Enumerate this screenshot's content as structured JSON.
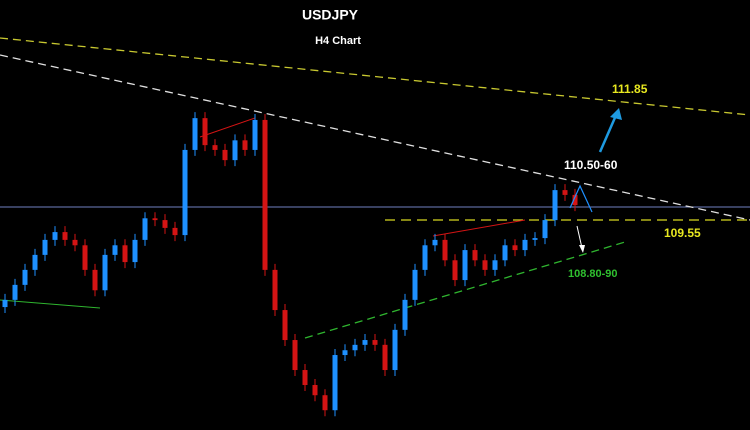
{
  "chart_data": {
    "type": "candlestick",
    "title": "USDJPY",
    "subtitle": "H4 Chart",
    "annotations": [
      "111.85",
      "110.50-60",
      "109.55",
      "108.80-90"
    ],
    "up_color": "#1e90ff",
    "down_color": "#d41414",
    "ylim": [
      106.05,
      113.22
    ],
    "open": [
      108.1,
      108.22,
      108.47,
      108.72,
      108.97,
      109.22,
      109.35,
      109.22,
      109.13,
      108.72,
      108.38,
      108.97,
      109.13,
      108.85,
      109.22,
      109.58,
      109.55,
      109.42,
      109.3,
      110.72,
      111.25,
      110.8,
      110.72,
      110.55,
      110.88,
      110.72,
      111.22,
      108.72,
      108.05,
      107.55,
      107.05,
      106.8,
      106.63,
      106.38,
      107.3,
      107.38,
      107.47,
      107.55,
      107.47,
      107.05,
      107.72,
      108.22,
      108.72,
      109.13,
      109.22,
      108.88,
      108.55,
      109.05,
      108.88,
      108.72,
      108.88,
      109.13,
      109.05,
      109.22,
      109.25,
      109.55,
      110.05,
      109.97
    ],
    "high": [
      108.32,
      108.57,
      108.82,
      109.07,
      109.32,
      109.45,
      109.45,
      109.32,
      109.23,
      108.82,
      109.07,
      109.23,
      109.23,
      109.32,
      109.68,
      109.68,
      109.65,
      109.52,
      110.82,
      111.35,
      111.35,
      110.9,
      110.82,
      110.98,
      110.98,
      111.32,
      111.32,
      108.82,
      108.15,
      107.65,
      107.15,
      106.9,
      106.73,
      107.4,
      107.48,
      107.57,
      107.65,
      107.65,
      107.57,
      107.82,
      108.32,
      108.82,
      109.23,
      109.32,
      109.32,
      108.98,
      109.15,
      109.15,
      108.98,
      108.98,
      109.23,
      109.23,
      109.32,
      109.35,
      109.65,
      110.15,
      110.15,
      110.07
    ],
    "low": [
      108.0,
      108.12,
      108.37,
      108.62,
      108.87,
      109.12,
      109.12,
      109.03,
      108.62,
      108.28,
      108.28,
      108.87,
      108.75,
      108.75,
      109.12,
      109.45,
      109.32,
      109.2,
      109.2,
      110.62,
      110.7,
      110.62,
      110.45,
      110.45,
      110.62,
      110.62,
      108.62,
      107.95,
      107.45,
      106.95,
      106.7,
      106.53,
      106.28,
      106.28,
      107.2,
      107.28,
      107.37,
      107.37,
      106.95,
      106.95,
      107.62,
      108.12,
      108.62,
      109.03,
      108.78,
      108.45,
      108.45,
      108.78,
      108.62,
      108.62,
      108.78,
      108.95,
      108.95,
      109.12,
      109.15,
      109.45,
      109.87,
      109.7
    ],
    "close": [
      108.22,
      108.47,
      108.72,
      108.97,
      109.22,
      109.35,
      109.22,
      109.13,
      108.72,
      108.38,
      108.97,
      109.13,
      108.85,
      109.22,
      109.58,
      109.55,
      109.42,
      109.3,
      110.72,
      111.25,
      110.8,
      110.72,
      110.55,
      110.88,
      110.72,
      111.22,
      108.72,
      108.05,
      107.55,
      107.05,
      106.8,
      106.63,
      106.38,
      107.3,
      107.38,
      107.47,
      107.55,
      107.47,
      107.05,
      107.72,
      108.22,
      108.72,
      109.13,
      109.22,
      108.88,
      108.55,
      109.05,
      108.88,
      108.72,
      108.88,
      109.13,
      109.05,
      109.22,
      109.25,
      109.55,
      110.05,
      109.97,
      109.8
    ]
  }
}
